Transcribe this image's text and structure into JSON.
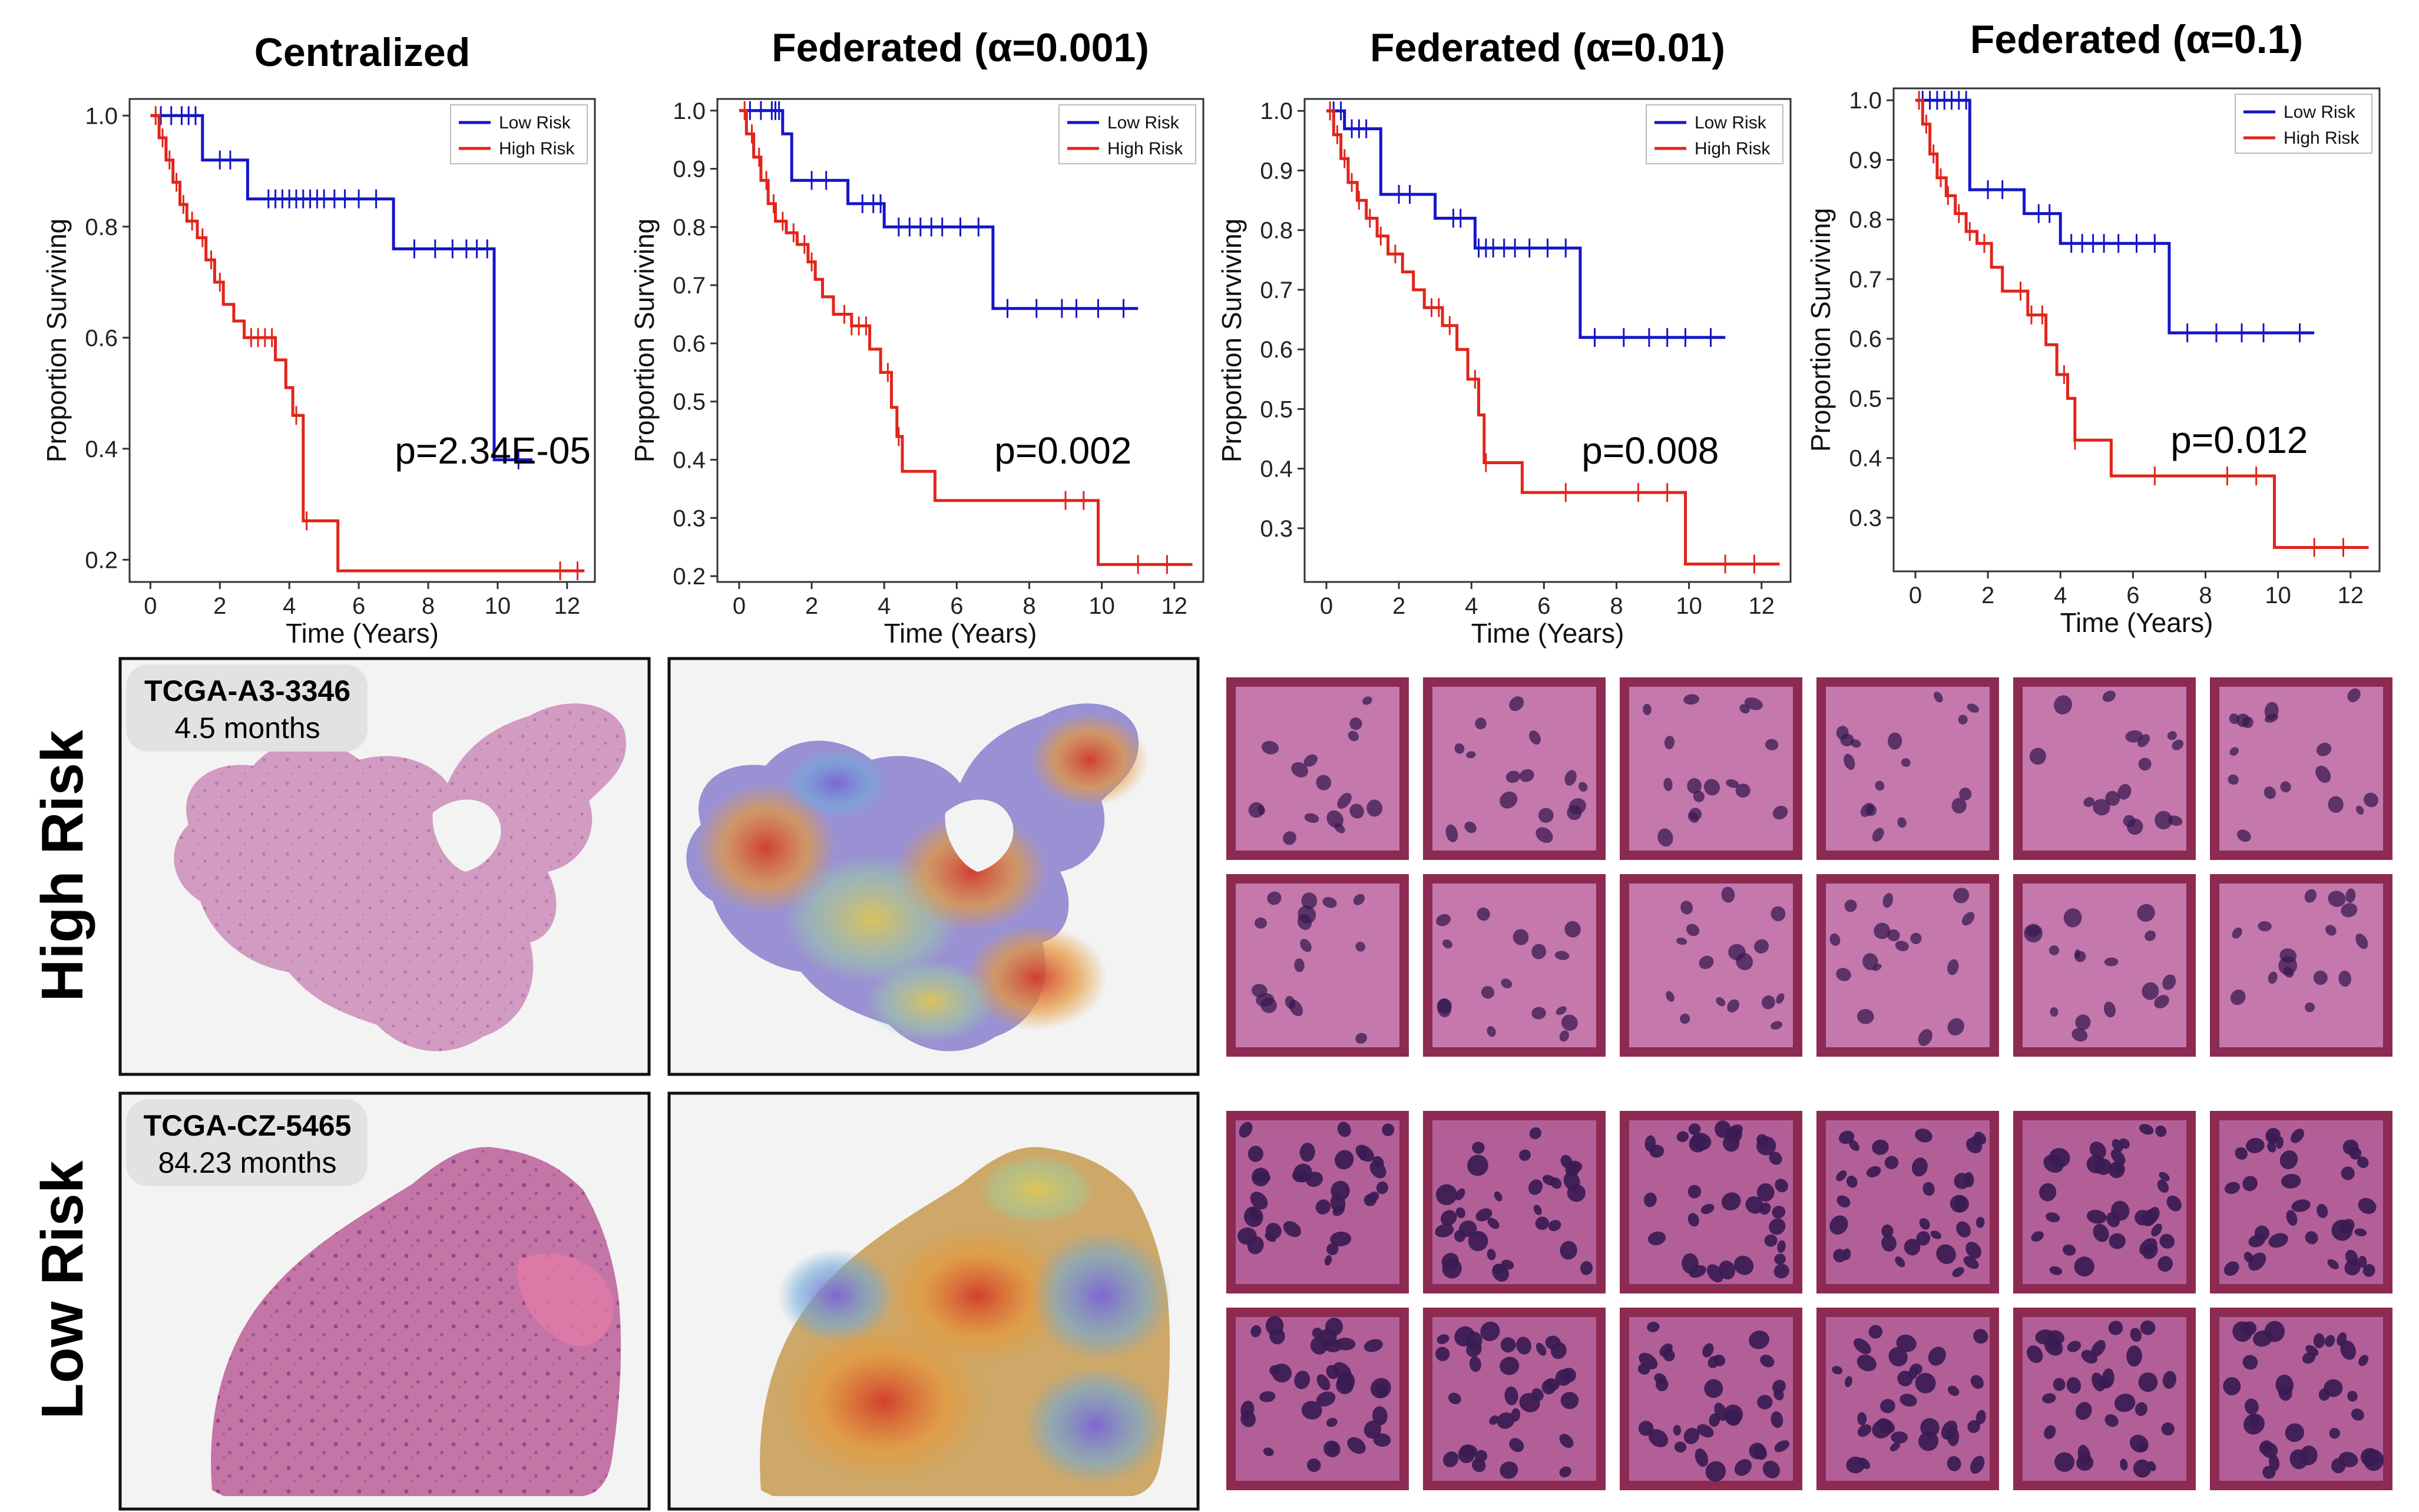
{
  "chart_data": [
    {
      "type": "line",
      "subtype": "kaplan-meier",
      "title": "Centralized",
      "xlabel": "Time (Years)",
      "ylabel": "Proportion Surviving",
      "xlim": [
        -0.6,
        12.8
      ],
      "ylim": [
        0.16,
        1.03
      ],
      "xticks": [
        0,
        2,
        4,
        6,
        8,
        10,
        12
      ],
      "yticks": [
        0.2,
        0.4,
        0.6,
        0.8,
        1.0
      ],
      "ytick_format": 1,
      "p_value": "p=2.34E-05",
      "legend": [
        {
          "label": "Low Risk",
          "color": "#1515c8"
        },
        {
          "label": "High Risk",
          "color": "#e1251b"
        }
      ],
      "series": [
        {
          "name": "Low Risk",
          "color": "#1515c8",
          "steps": [
            [
              0,
              1.0
            ],
            [
              1.5,
              0.92
            ],
            [
              2.8,
              0.85
            ],
            [
              7.0,
              0.76
            ],
            [
              9.9,
              0.38
            ],
            [
              11.0,
              0.38
            ]
          ],
          "censors": [
            0.3,
            0.6,
            0.9,
            1.1,
            1.3,
            2.0,
            2.3,
            3.4,
            3.6,
            3.8,
            4.0,
            4.2,
            4.4,
            4.6,
            4.8,
            5.0,
            5.3,
            5.6,
            6.0,
            6.5,
            7.6,
            8.2,
            8.7,
            9.1,
            9.4,
            9.7,
            10.6
          ]
        },
        {
          "name": "High Risk",
          "color": "#e1251b",
          "steps": [
            [
              0,
              1.0
            ],
            [
              0.25,
              0.96
            ],
            [
              0.45,
              0.92
            ],
            [
              0.65,
              0.88
            ],
            [
              0.85,
              0.84
            ],
            [
              1.05,
              0.81
            ],
            [
              1.35,
              0.78
            ],
            [
              1.6,
              0.74
            ],
            [
              1.85,
              0.7
            ],
            [
              2.1,
              0.66
            ],
            [
              2.4,
              0.63
            ],
            [
              2.7,
              0.6
            ],
            [
              3.6,
              0.56
            ],
            [
              3.9,
              0.51
            ],
            [
              4.1,
              0.46
            ],
            [
              4.4,
              0.27
            ],
            [
              5.4,
              0.18
            ],
            [
              12.5,
              0.18
            ]
          ],
          "censors": [
            0.15,
            0.35,
            0.55,
            0.75,
            0.95,
            1.2,
            1.5,
            1.75,
            2.0,
            2.9,
            3.1,
            3.3,
            3.5,
            4.2,
            4.5,
            11.8,
            12.3
          ]
        }
      ]
    },
    {
      "type": "line",
      "subtype": "kaplan-meier",
      "title": "Federated (α=0.001)",
      "xlabel": "Time (Years)",
      "ylabel": "Proportion Surviving",
      "xlim": [
        -0.6,
        12.8
      ],
      "ylim": [
        0.19,
        1.02
      ],
      "xticks": [
        0,
        2,
        4,
        6,
        8,
        10,
        12
      ],
      "yticks": [
        0.2,
        0.3,
        0.4,
        0.5,
        0.6,
        0.7,
        0.8,
        0.9,
        1.0
      ],
      "ytick_format": 1,
      "p_value": "p=0.002",
      "legend": [
        {
          "label": "Low Risk",
          "color": "#1515c8"
        },
        {
          "label": "High Risk",
          "color": "#e1251b"
        }
      ],
      "series": [
        {
          "name": "Low Risk",
          "color": "#1515c8",
          "steps": [
            [
              0,
              1.0
            ],
            [
              1.2,
              0.96
            ],
            [
              1.45,
              0.88
            ],
            [
              3.0,
              0.84
            ],
            [
              4.0,
              0.8
            ],
            [
              7.0,
              0.66
            ],
            [
              11.0,
              0.66
            ]
          ],
          "censors": [
            0.3,
            0.6,
            0.9,
            1.0,
            1.1,
            2.0,
            2.4,
            3.4,
            3.7,
            3.9,
            4.4,
            4.7,
            5.0,
            5.3,
            5.6,
            6.1,
            6.6,
            7.4,
            8.2,
            8.9,
            9.3,
            9.9,
            10.6
          ]
        },
        {
          "name": "High Risk",
          "color": "#e1251b",
          "steps": [
            [
              0,
              1.0
            ],
            [
              0.2,
              0.96
            ],
            [
              0.4,
              0.92
            ],
            [
              0.6,
              0.88
            ],
            [
              0.8,
              0.84
            ],
            [
              1.0,
              0.81
            ],
            [
              1.3,
              0.79
            ],
            [
              1.6,
              0.77
            ],
            [
              1.9,
              0.74
            ],
            [
              2.1,
              0.71
            ],
            [
              2.3,
              0.68
            ],
            [
              2.6,
              0.65
            ],
            [
              3.1,
              0.63
            ],
            [
              3.6,
              0.59
            ],
            [
              3.9,
              0.55
            ],
            [
              4.2,
              0.49
            ],
            [
              4.35,
              0.44
            ],
            [
              4.5,
              0.38
            ],
            [
              5.4,
              0.33
            ],
            [
              9.9,
              0.22
            ],
            [
              12.5,
              0.22
            ]
          ],
          "censors": [
            0.15,
            0.35,
            0.55,
            0.75,
            0.95,
            1.2,
            1.5,
            1.8,
            2.0,
            2.9,
            3.1,
            3.3,
            3.5,
            4.1,
            4.4,
            9.0,
            9.5,
            11.0,
            11.8
          ]
        }
      ]
    },
    {
      "type": "line",
      "subtype": "kaplan-meier",
      "title": "Federated (α=0.01)",
      "xlabel": "Time (Years)",
      "ylabel": "Proportion Surviving",
      "xlim": [
        -0.6,
        12.8
      ],
      "ylim": [
        0.21,
        1.02
      ],
      "xticks": [
        0,
        2,
        4,
        6,
        8,
        10,
        12
      ],
      "yticks": [
        0.3,
        0.4,
        0.5,
        0.6,
        0.7,
        0.8,
        0.9,
        1.0
      ],
      "ytick_format": 1,
      "p_value": "p=0.008",
      "legend": [
        {
          "label": "Low Risk",
          "color": "#1515c8"
        },
        {
          "label": "High Risk",
          "color": "#e1251b"
        }
      ],
      "series": [
        {
          "name": "Low Risk",
          "color": "#1515c8",
          "steps": [
            [
              0,
              1.0
            ],
            [
              0.5,
              0.97
            ],
            [
              1.5,
              0.86
            ],
            [
              3.0,
              0.82
            ],
            [
              4.1,
              0.77
            ],
            [
              7.0,
              0.62
            ],
            [
              11.0,
              0.62
            ]
          ],
          "censors": [
            0.2,
            0.4,
            0.7,
            0.9,
            1.1,
            2.0,
            2.3,
            3.5,
            3.7,
            4.2,
            4.4,
            4.6,
            4.9,
            5.2,
            5.6,
            6.1,
            6.6,
            7.4,
            8.2,
            8.9,
            9.4,
            9.9,
            10.6
          ]
        },
        {
          "name": "High Risk",
          "color": "#e1251b",
          "steps": [
            [
              0,
              1.0
            ],
            [
              0.2,
              0.96
            ],
            [
              0.4,
              0.92
            ],
            [
              0.6,
              0.88
            ],
            [
              0.85,
              0.85
            ],
            [
              1.1,
              0.82
            ],
            [
              1.4,
              0.79
            ],
            [
              1.7,
              0.76
            ],
            [
              2.1,
              0.73
            ],
            [
              2.4,
              0.7
            ],
            [
              2.7,
              0.67
            ],
            [
              3.2,
              0.64
            ],
            [
              3.6,
              0.6
            ],
            [
              3.9,
              0.55
            ],
            [
              4.2,
              0.49
            ],
            [
              4.35,
              0.41
            ],
            [
              5.4,
              0.36
            ],
            [
              9.9,
              0.24
            ],
            [
              12.5,
              0.24
            ]
          ],
          "censors": [
            0.1,
            0.3,
            0.5,
            0.7,
            0.9,
            1.2,
            1.5,
            1.9,
            2.9,
            3.1,
            3.4,
            4.1,
            4.4,
            6.6,
            8.6,
            9.4,
            11.0,
            11.8
          ]
        }
      ]
    },
    {
      "type": "line",
      "subtype": "kaplan-meier",
      "title": "Federated (α=0.1)",
      "xlabel": "Time (Years)",
      "ylabel": "Proportion Surviving",
      "xlim": [
        -0.6,
        12.8
      ],
      "ylim": [
        0.21,
        1.02
      ],
      "xticks": [
        0,
        2,
        4,
        6,
        8,
        10,
        12
      ],
      "yticks": [
        0.3,
        0.4,
        0.5,
        0.6,
        0.7,
        0.8,
        0.9,
        1.0
      ],
      "ytick_format": 1,
      "p_value": "p=0.012",
      "legend": [
        {
          "label": "Low Risk",
          "color": "#1515c8"
        },
        {
          "label": "High Risk",
          "color": "#e1251b"
        }
      ],
      "series": [
        {
          "name": "Low Risk",
          "color": "#1515c8",
          "steps": [
            [
              0,
              1.0
            ],
            [
              1.5,
              0.85
            ],
            [
              3.0,
              0.81
            ],
            [
              4.0,
              0.76
            ],
            [
              7.0,
              0.61
            ],
            [
              11.0,
              0.61
            ]
          ],
          "censors": [
            0.2,
            0.4,
            0.6,
            0.8,
            1.0,
            1.2,
            1.4,
            2.0,
            2.4,
            3.4,
            3.7,
            4.3,
            4.6,
            4.9,
            5.2,
            5.6,
            6.1,
            6.6,
            7.5,
            8.3,
            9.0,
            9.6,
            10.6
          ]
        },
        {
          "name": "High Risk",
          "color": "#e1251b",
          "steps": [
            [
              0,
              1.0
            ],
            [
              0.2,
              0.96
            ],
            [
              0.4,
              0.91
            ],
            [
              0.6,
              0.87
            ],
            [
              0.85,
              0.84
            ],
            [
              1.1,
              0.81
            ],
            [
              1.4,
              0.78
            ],
            [
              1.7,
              0.76
            ],
            [
              2.1,
              0.72
            ],
            [
              2.4,
              0.68
            ],
            [
              3.1,
              0.64
            ],
            [
              3.6,
              0.59
            ],
            [
              3.9,
              0.54
            ],
            [
              4.2,
              0.5
            ],
            [
              4.4,
              0.43
            ],
            [
              5.4,
              0.37
            ],
            [
              9.9,
              0.25
            ],
            [
              12.5,
              0.25
            ]
          ],
          "censors": [
            0.1,
            0.3,
            0.5,
            0.7,
            0.9,
            1.2,
            1.5,
            1.9,
            2.9,
            3.2,
            3.5,
            4.1,
            4.4,
            6.6,
            8.6,
            9.4,
            11.0,
            11.8
          ]
        }
      ]
    }
  ],
  "row_labels": [
    "High Risk",
    "Low Risk"
  ],
  "cases": [
    {
      "id": "TCGA-A3-3346",
      "survival": "4.5 months"
    },
    {
      "id": "TCGA-CZ-5465",
      "survival": "84.23 months"
    }
  ],
  "colors": {
    "low_risk": "#1515c8",
    "high_risk": "#e1251b",
    "patch_border": "#8c2a52",
    "he_stain": "#c478ab",
    "nucleus": "#3a1b52"
  }
}
